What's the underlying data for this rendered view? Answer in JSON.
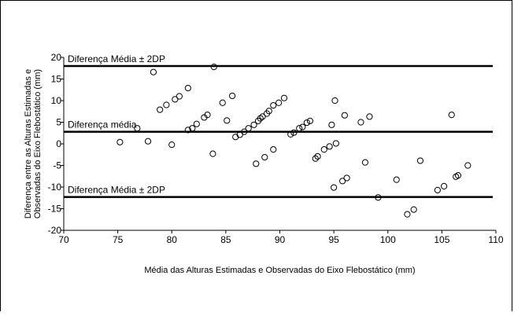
{
  "chart_data": {
    "type": "scatter",
    "title": "",
    "xlabel": "Média das Alturas Estimadas e Observadas do Eixo Flebostático (mm)",
    "ylabel": [
      "Diferença entre as Alturas Estimadas e",
      "Observadas do Eixo Flebostático (mm)"
    ],
    "xlim": [
      70,
      110
    ],
    "ylim": [
      -20,
      20
    ],
    "x_ticks": [
      "70",
      "75",
      "80",
      "85",
      "90",
      "95",
      "100",
      "105",
      "110"
    ],
    "y_ticks": [
      "20",
      "15",
      "10",
      "5",
      "0",
      "-5",
      "-10",
      "-15",
      "-20"
    ],
    "grid": false,
    "reference_lines": [
      {
        "label": "Diferença Média ± 2DP",
        "y": 18
      },
      {
        "label": "Diferença média",
        "y": 2.8
      },
      {
        "label": "Diferença Média ± 2DP",
        "y": -12.3
      }
    ],
    "marker": "open-circle",
    "points": [
      {
        "x": 75.2,
        "y": 0.4
      },
      {
        "x": 76.8,
        "y": 3.6
      },
      {
        "x": 77.8,
        "y": 0.6
      },
      {
        "x": 78.3,
        "y": 16.6
      },
      {
        "x": 78.9,
        "y": 7.9
      },
      {
        "x": 79.5,
        "y": 9.0
      },
      {
        "x": 80.0,
        "y": -0.2
      },
      {
        "x": 80.3,
        "y": 10.3
      },
      {
        "x": 80.7,
        "y": 11.0
      },
      {
        "x": 81.5,
        "y": 12.9
      },
      {
        "x": 81.5,
        "y": 3.2
      },
      {
        "x": 81.9,
        "y": 3.6
      },
      {
        "x": 82.3,
        "y": 4.6
      },
      {
        "x": 83.0,
        "y": 6.1
      },
      {
        "x": 83.3,
        "y": 6.7
      },
      {
        "x": 83.8,
        "y": -2.3
      },
      {
        "x": 83.9,
        "y": 17.8
      },
      {
        "x": 84.7,
        "y": 9.5
      },
      {
        "x": 85.1,
        "y": 5.4
      },
      {
        "x": 85.6,
        "y": 11.1
      },
      {
        "x": 85.9,
        "y": 1.6
      },
      {
        "x": 86.3,
        "y": 2.1
      },
      {
        "x": 86.7,
        "y": 2.8
      },
      {
        "x": 87.1,
        "y": 3.6
      },
      {
        "x": 87.6,
        "y": 4.4
      },
      {
        "x": 87.8,
        "y": -4.6
      },
      {
        "x": 88.0,
        "y": 5.3
      },
      {
        "x": 88.2,
        "y": 5.9
      },
      {
        "x": 88.4,
        "y": 6.3
      },
      {
        "x": 88.6,
        "y": -3.1
      },
      {
        "x": 88.8,
        "y": 7.0
      },
      {
        "x": 89.0,
        "y": 7.6
      },
      {
        "x": 89.4,
        "y": -1.3
      },
      {
        "x": 89.4,
        "y": 8.9
      },
      {
        "x": 89.9,
        "y": 9.5
      },
      {
        "x": 90.4,
        "y": 10.6
      },
      {
        "x": 91.0,
        "y": 2.2
      },
      {
        "x": 91.3,
        "y": 2.6
      },
      {
        "x": 91.8,
        "y": 3.6
      },
      {
        "x": 92.1,
        "y": 3.9
      },
      {
        "x": 92.5,
        "y": 4.9
      },
      {
        "x": 92.8,
        "y": 5.3
      },
      {
        "x": 93.3,
        "y": -3.4
      },
      {
        "x": 93.5,
        "y": -2.9
      },
      {
        "x": 94.1,
        "y": -1.3
      },
      {
        "x": 94.6,
        "y": -0.6
      },
      {
        "x": 94.8,
        "y": 4.4
      },
      {
        "x": 95.0,
        "y": -10.1
      },
      {
        "x": 95.1,
        "y": 10.0
      },
      {
        "x": 95.2,
        "y": 0.1
      },
      {
        "x": 95.8,
        "y": -8.6
      },
      {
        "x": 96.0,
        "y": 6.6
      },
      {
        "x": 96.2,
        "y": -7.9
      },
      {
        "x": 97.5,
        "y": 5.0
      },
      {
        "x": 97.9,
        "y": -4.3
      },
      {
        "x": 98.3,
        "y": 6.3
      },
      {
        "x": 99.1,
        "y": -12.4
      },
      {
        "x": 100.8,
        "y": -8.3
      },
      {
        "x": 101.8,
        "y": -16.3
      },
      {
        "x": 102.4,
        "y": -15.2
      },
      {
        "x": 103.0,
        "y": -3.9
      },
      {
        "x": 104.6,
        "y": -10.7
      },
      {
        "x": 105.2,
        "y": -9.8
      },
      {
        "x": 105.9,
        "y": 6.7
      },
      {
        "x": 106.3,
        "y": -7.6
      },
      {
        "x": 106.5,
        "y": -7.3
      },
      {
        "x": 107.4,
        "y": -5.0
      }
    ]
  }
}
